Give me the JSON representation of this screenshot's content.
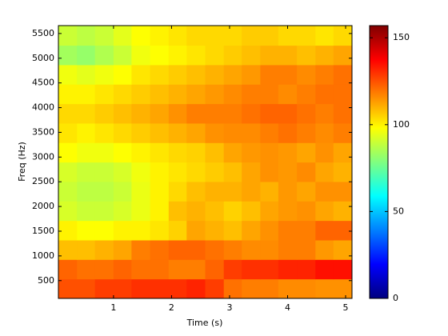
{
  "chart_data": {
    "type": "heatmap",
    "colormap": "jet",
    "xlabel": "Time (s)",
    "ylabel": "Freq (Hz)",
    "xlim": [
      0.05,
      5.11
    ],
    "ylim": [
      140,
      5660
    ],
    "xticks": [
      1,
      2,
      3,
      4,
      5
    ],
    "yticks": [
      500,
      1000,
      1500,
      2000,
      2500,
      3000,
      3500,
      4000,
      4500,
      5000,
      5500
    ],
    "clim": [
      0,
      157
    ],
    "cticks": [
      0,
      50,
      100,
      150
    ],
    "xbins": [
      0.05,
      0.37,
      0.68,
      1.0,
      1.31,
      1.63,
      1.95,
      2.26,
      2.58,
      2.9,
      3.21,
      3.53,
      3.84,
      4.16,
      4.48,
      4.79,
      5.11
    ],
    "ybins": [
      140,
      534,
      928,
      1322,
      1716,
      2110,
      2504,
      2898,
      3292,
      3686,
      4080,
      4474,
      4868,
      5262,
      5660
    ],
    "z": [
      [
        125,
        125,
        128,
        128,
        130,
        130,
        130,
        132,
        128,
        120,
        118,
        118,
        116,
        116,
        115,
        115
      ],
      [
        122,
        120,
        120,
        122,
        120,
        120,
        118,
        118,
        122,
        128,
        130,
        130,
        132,
        132,
        135,
        135
      ],
      [
        108,
        108,
        110,
        112,
        118,
        120,
        122,
        122,
        120,
        118,
        116,
        116,
        118,
        118,
        114,
        112
      ],
      [
        100,
        98,
        98,
        100,
        100,
        102,
        105,
        112,
        110,
        108,
        112,
        115,
        118,
        118,
        122,
        122
      ],
      [
        92,
        90,
        90,
        92,
        95,
        100,
        108,
        110,
        108,
        105,
        108,
        112,
        114,
        115,
        112,
        110
      ],
      [
        90,
        88,
        88,
        90,
        95,
        100,
        104,
        108,
        110,
        110,
        112,
        110,
        114,
        112,
        115,
        115
      ],
      [
        92,
        90,
        90,
        92,
        96,
        100,
        102,
        104,
        106,
        108,
        112,
        115,
        114,
        116,
        112,
        110
      ],
      [
        98,
        96,
        96,
        98,
        100,
        102,
        104,
        105,
        108,
        112,
        114,
        115,
        114,
        112,
        115,
        112
      ],
      [
        102,
        100,
        102,
        104,
        106,
        108,
        110,
        112,
        115,
        116,
        116,
        118,
        120,
        118,
        116,
        118
      ],
      [
        104,
        104,
        106,
        108,
        110,
        112,
        115,
        118,
        118,
        118,
        120,
        122,
        122,
        120,
        118,
        120
      ],
      [
        100,
        100,
        102,
        104,
        106,
        108,
        110,
        112,
        114,
        116,
        118,
        118,
        116,
        118,
        120,
        120
      ],
      [
        96,
        94,
        96,
        98,
        102,
        104,
        106,
        108,
        110,
        112,
        114,
        118,
        118,
        116,
        118,
        120
      ],
      [
        84,
        82,
        86,
        90,
        96,
        98,
        100,
        102,
        104,
        106,
        108,
        110,
        110,
        108,
        110,
        112
      ],
      [
        90,
        88,
        90,
        94,
        98,
        100,
        102,
        104,
        104,
        104,
        106,
        106,
        104,
        104,
        102,
        104
      ]
    ]
  }
}
